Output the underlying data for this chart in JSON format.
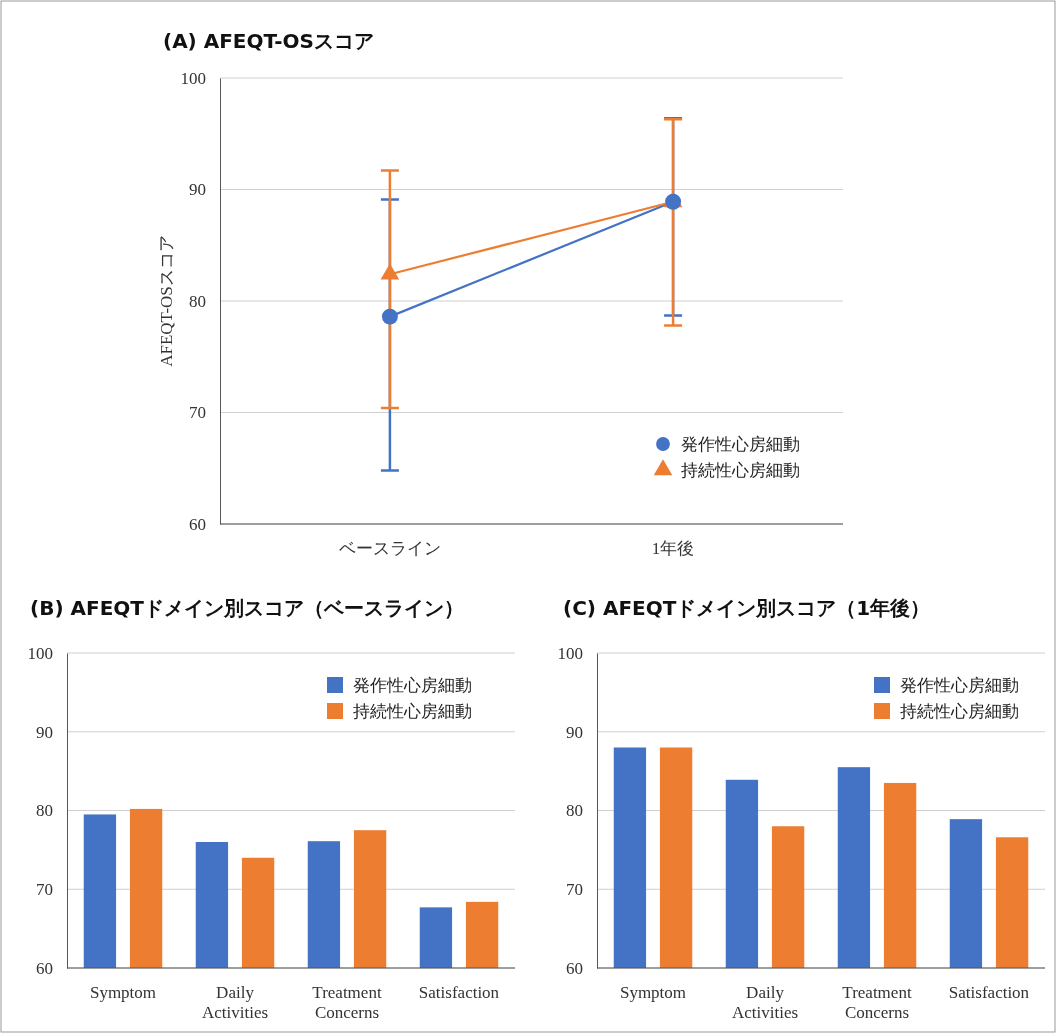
{
  "chart_data": [
    {
      "type": "line",
      "title": "(A) AFEQT-OSスコア",
      "ylabel": "AFEQT-OSスコア",
      "categories": [
        "ベースライン",
        "1年後"
      ],
      "ylim": [
        60,
        100
      ],
      "yticks": [
        60,
        70,
        80,
        90,
        100
      ],
      "grid": "y",
      "legend": "bottom right",
      "series": [
        {
          "name": "発作性心房細動",
          "color": "#4472c4",
          "marker": "circle",
          "values": [
            78.6,
            88.9
          ],
          "errors": [
            [
              64.8,
              89.1
            ],
            [
              78.7,
              96.4
            ]
          ]
        },
        {
          "name": "持続性心房細動",
          "color": "#ed7d31",
          "marker": "triangle",
          "values": [
            82.4,
            88.9
          ],
          "errors": [
            [
              70.4,
              91.7
            ],
            [
              77.8,
              96.3
            ]
          ]
        }
      ]
    },
    {
      "type": "bar",
      "title": "(B) AFEQTドメイン別スコア（ベースライン）",
      "categories": [
        "Symptom",
        "Daily Activities",
        "Treatment Concerns",
        "Satisfaction"
      ],
      "ylim": [
        60,
        100
      ],
      "yticks": [
        60,
        70,
        80,
        90,
        100
      ],
      "grid": "y",
      "legend": "top right",
      "series": [
        {
          "name": "発作性心房細動",
          "color": "#4472c4",
          "values": [
            79.5,
            76.0,
            76.1,
            67.7
          ]
        },
        {
          "name": "持続性心房細動",
          "color": "#ed7d31",
          "values": [
            80.2,
            74.0,
            77.5,
            68.4
          ]
        }
      ]
    },
    {
      "type": "bar",
      "title": "(C) AFEQTドメイン別スコア（1年後）",
      "categories": [
        "Symptom",
        "Daily Activities",
        "Treatment Concerns",
        "Satisfaction"
      ],
      "ylim": [
        60,
        100
      ],
      "yticks": [
        60,
        70,
        80,
        90,
        100
      ],
      "grid": "y",
      "legend": "top right",
      "series": [
        {
          "name": "発作性心房細動",
          "color": "#4472c4",
          "values": [
            88.0,
            83.9,
            85.5,
            78.9
          ]
        },
        {
          "name": "持続性心房細動",
          "color": "#ed7d31",
          "values": [
            88.0,
            78.0,
            83.5,
            76.6
          ]
        }
      ]
    }
  ]
}
